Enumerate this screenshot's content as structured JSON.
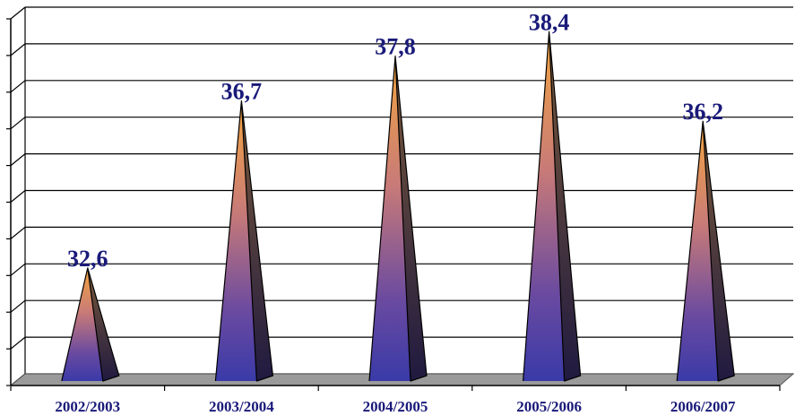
{
  "chart_data": {
    "type": "bar",
    "bar_shape": "pyramid",
    "categories": [
      "2002/2003",
      "2003/2004",
      "2004/2005",
      "2005/2006",
      "2006/2007"
    ],
    "values": [
      32.6,
      36.7,
      37.8,
      38.4,
      36.2
    ],
    "value_labels": [
      "32,6",
      "36,7",
      "37,8",
      "38,4",
      "36,2"
    ],
    "title": "",
    "xlabel": "",
    "ylabel": "",
    "ylim": [
      30,
      39
    ],
    "grid": true,
    "legend": "none",
    "colors": {
      "bar_top": "#f5a640",
      "bar_bottom": "#3a3aa8",
      "bar_side": "#2a2050",
      "label_text": "#1a1a7a",
      "grid": "#000000",
      "floor": "#9a9a9a"
    }
  }
}
